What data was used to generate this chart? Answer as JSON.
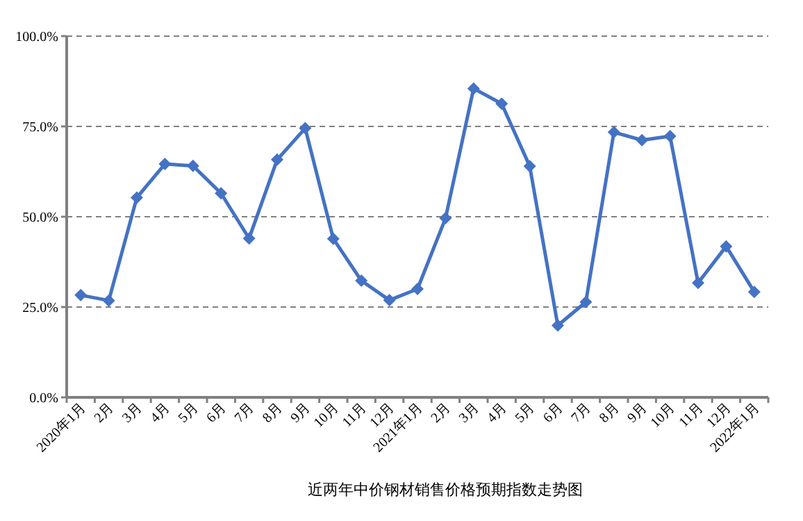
{
  "chart_data": {
    "type": "line",
    "title": "近两年中价钢材销售价格预期指数走势图",
    "categories": [
      "2020年1月",
      "2月",
      "3月",
      "4月",
      "5月",
      "6月",
      "7月",
      "8月",
      "9月",
      "10月",
      "11月",
      "12月",
      "2021年1月",
      "2月",
      "3月",
      "4月",
      "5月",
      "6月",
      "7月",
      "8月",
      "9月",
      "10月",
      "11月",
      "12月",
      "2022年1月"
    ],
    "series": [
      {
        "color": "#4472c4",
        "values": [
          28.3,
          26.8,
          55.3,
          64.6,
          64.1,
          56.5,
          44.0,
          65.8,
          74.5,
          43.9,
          32.3,
          26.9,
          30.0,
          49.6,
          85.5,
          81.3,
          64.0,
          19.9,
          26.4,
          73.4,
          71.2,
          72.3,
          31.7,
          41.8,
          29.2
        ]
      }
    ],
    "ylim": [
      0,
      100
    ],
    "yticks": [
      {
        "value": 0,
        "label": "0.0%"
      },
      {
        "value": 25,
        "label": "25.0%"
      },
      {
        "value": 50,
        "label": "50.0%"
      },
      {
        "value": 75,
        "label": "75.0%"
      },
      {
        "value": 100,
        "label": "100.0%"
      }
    ],
    "grid": "y",
    "marker": "diamond",
    "line_style": "solid"
  }
}
